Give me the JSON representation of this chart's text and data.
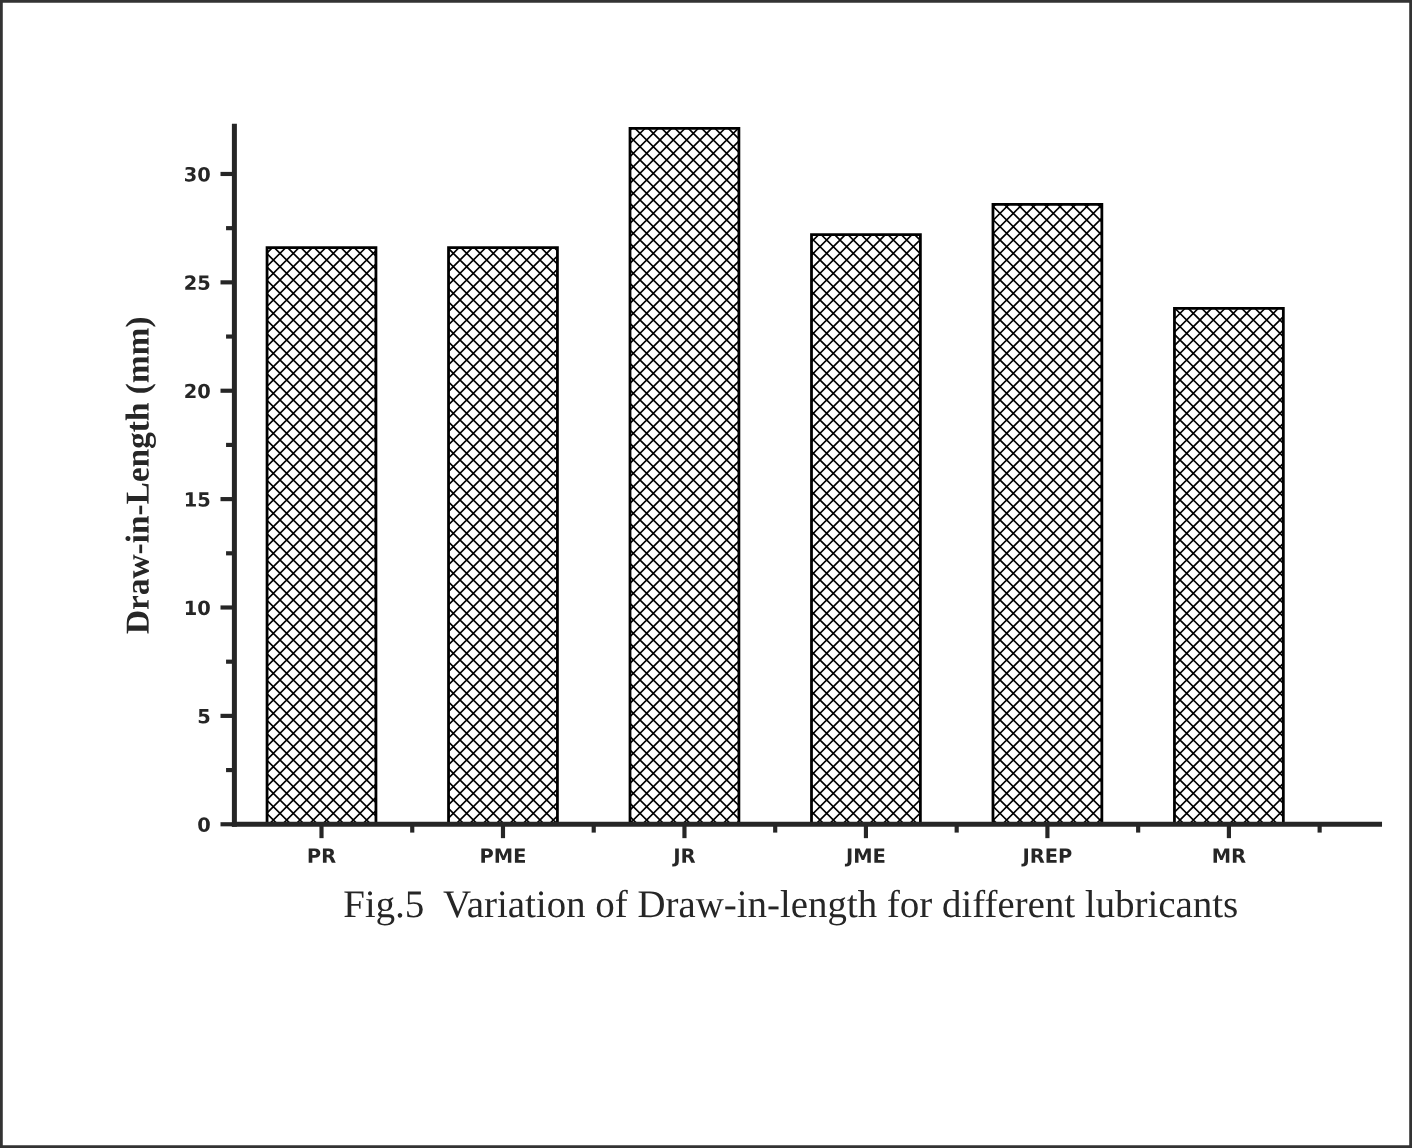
{
  "chart_data": {
    "type": "bar",
    "categories": [
      "PR",
      "PME",
      "JR",
      "JME",
      "JREP",
      "MR"
    ],
    "values": [
      26.6,
      26.6,
      32.1,
      27.2,
      28.6,
      23.8
    ],
    "color": "#000000",
    "ylabel": "Draw-in-Length (mm)",
    "ylim": [
      0,
      32.2
    ],
    "yticks": [
      0,
      5,
      10,
      15,
      20,
      25,
      30
    ],
    "grid": false,
    "annotations": [
      "Fig.5  Variation of Draw-in-length for different lubricants"
    ]
  }
}
